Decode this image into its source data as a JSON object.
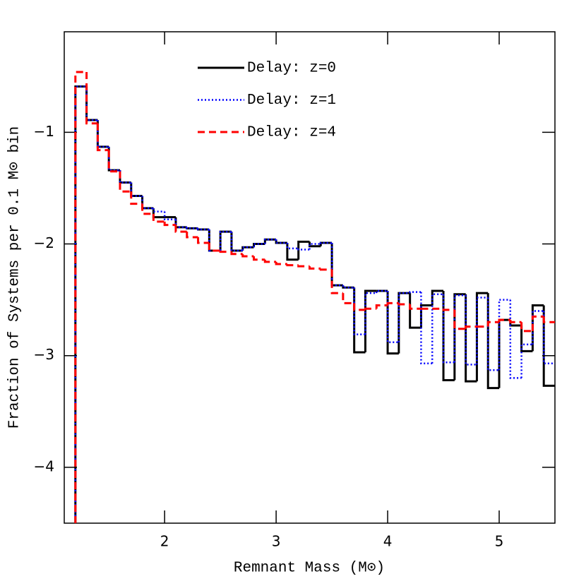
{
  "chart_data": {
    "type": "step-histogram",
    "xlabel": "Remnant Mass (M⊙)",
    "ylabel": "Fraction of Systems per 0.1 M⊙ bin",
    "bins": [
      1.2,
      1.3,
      1.4,
      1.5,
      1.6,
      1.7,
      1.8,
      1.9,
      2.0,
      2.1,
      2.2,
      2.3,
      2.4,
      2.5,
      2.6,
      2.7,
      2.8,
      2.9,
      3.0,
      3.1,
      3.2,
      3.3,
      3.4,
      3.5,
      3.6,
      3.7,
      3.8,
      3.9,
      4.0,
      4.1,
      4.2,
      4.3,
      4.4,
      4.5,
      4.6,
      4.7,
      4.8,
      4.9,
      5.0,
      5.1,
      5.2,
      5.3,
      5.4,
      5.5
    ],
    "series": [
      {
        "name": "Delay: z=0",
        "color": "#000000",
        "line_style": "solid",
        "values": [
          -0.59,
          -0.89,
          -1.13,
          -1.34,
          -1.45,
          -1.57,
          -1.68,
          -1.76,
          -1.76,
          -1.85,
          -1.86,
          -1.87,
          -2.06,
          -1.89,
          -2.06,
          -2.03,
          -2.0,
          -1.96,
          -1.99,
          -2.14,
          -1.98,
          -2.02,
          -1.99,
          -2.37,
          -2.39,
          -2.97,
          -2.42,
          -2.42,
          -2.98,
          -2.44,
          -2.75,
          -2.55,
          -2.42,
          -3.22,
          -2.45,
          -3.23,
          -2.44,
          -3.29,
          -2.68,
          -2.73,
          -2.96,
          -2.55,
          -3.27
        ]
      },
      {
        "name": "Delay: z=1",
        "color": "#0000ff",
        "line_style": "dotted",
        "values": [
          -0.59,
          -0.89,
          -1.13,
          -1.34,
          -1.45,
          -1.57,
          -1.68,
          -1.71,
          -1.78,
          -1.85,
          -1.86,
          -1.87,
          -2.06,
          -1.89,
          -2.06,
          -2.03,
          -2.0,
          -1.96,
          -1.99,
          -2.04,
          -2.05,
          -2.0,
          -1.99,
          -2.37,
          -2.39,
          -2.81,
          -2.44,
          -2.42,
          -2.88,
          -2.44,
          -2.43,
          -3.07,
          -2.45,
          -3.06,
          -2.46,
          -3.08,
          -2.48,
          -3.13,
          -2.5,
          -3.2,
          -2.9,
          -2.6,
          -3.07
        ]
      },
      {
        "name": "Delay: z=4",
        "color": "#ff0000",
        "line_style": "dashed",
        "values": [
          -0.46,
          -0.92,
          -1.16,
          -1.35,
          -1.53,
          -1.64,
          -1.73,
          -1.8,
          -1.83,
          -1.89,
          -1.94,
          -1.99,
          -2.06,
          -2.07,
          -2.09,
          -2.11,
          -2.14,
          -2.16,
          -2.18,
          -2.19,
          -2.2,
          -2.22,
          -2.23,
          -2.44,
          -2.53,
          -2.59,
          -2.58,
          -2.55,
          -2.53,
          -2.54,
          -2.58,
          -2.58,
          -2.58,
          -2.59,
          -2.76,
          -2.74,
          -2.74,
          -2.7,
          -2.68,
          -2.7,
          -2.78,
          -2.65,
          -2.7
        ]
      }
    ],
    "xlim": [
      1.1,
      5.5
    ],
    "xticks": [
      2,
      3,
      4,
      5
    ],
    "ylim": [
      -4.5,
      -0.1
    ],
    "yticks": [
      {
        "value": -4,
        "label": "−4"
      },
      {
        "value": -3,
        "label": "−3"
      },
      {
        "value": -2,
        "label": "−2"
      },
      {
        "value": -1,
        "label": "−1"
      }
    ],
    "legend": "upper-center"
  }
}
